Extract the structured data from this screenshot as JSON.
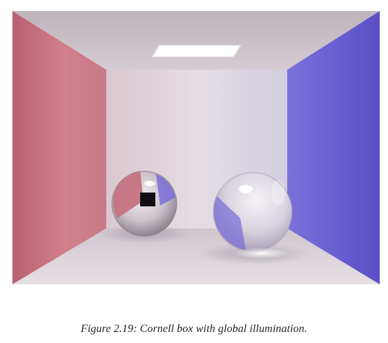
{
  "figure": {
    "caption": "Figure 2.19: Cornell box with global illumination.",
    "image_subject": "cornell-box-render",
    "colors": {
      "left_wall": "#c86a78",
      "right_wall": "#6a5ed6",
      "back_wall": "#d7cfd6",
      "ceiling": "#cfc7cc",
      "floor": "#ddd6dc",
      "light": "#ffffff"
    }
  }
}
